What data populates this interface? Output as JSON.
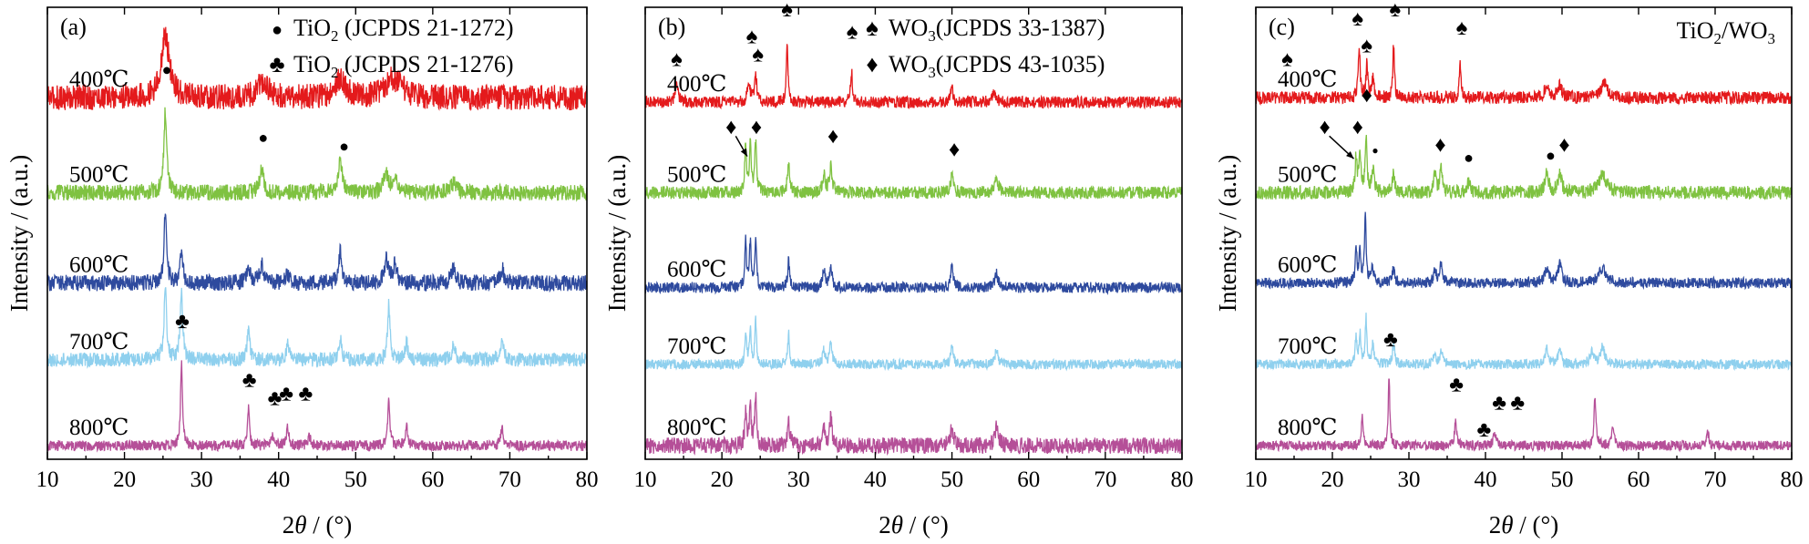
{
  "chart_data": [
    {
      "type": "line",
      "panel_label": "(a)",
      "xlabel": "2θ / (°)",
      "ylabel": "Intensity / (a.u.)",
      "xlim": [
        10,
        80
      ],
      "xticks": [
        10,
        20,
        30,
        40,
        50,
        60,
        70,
        80
      ],
      "legend": [
        {
          "symbol": "●",
          "text": "TiO₂ (JCPDS 21-1272)"
        },
        {
          "symbol": "♣",
          "text": "TiO₂ (JCPDS 21-1276)"
        }
      ],
      "corner_text": "",
      "series": [
        {
          "label": "400℃",
          "color": "#e41a1c",
          "base": 0.8,
          "noise": 0.028,
          "peaks": [
            [
              25.3,
              0.14,
              0.6
            ],
            [
              38.0,
              0.035,
              0.8
            ],
            [
              48.0,
              0.04,
              0.8
            ],
            [
              54.5,
              0.03,
              1.0
            ],
            [
              55.5,
              0.02,
              1.0
            ]
          ],
          "markers": [],
          "arrows": []
        },
        {
          "label": "500℃",
          "color": "#7fc241",
          "base": 0.59,
          "noise": 0.018,
          "peaks": [
            [
              25.3,
              0.18,
              0.22
            ],
            [
              37.8,
              0.05,
              0.3
            ],
            [
              48.0,
              0.07,
              0.3
            ],
            [
              53.9,
              0.04,
              0.35
            ],
            [
              55.1,
              0.04,
              0.35
            ],
            [
              62.7,
              0.02,
              0.4
            ]
          ],
          "markers": [
            {
              "x": 25.5,
              "y": 0.85,
              "symbol": "●"
            },
            {
              "x": 38.0,
              "y": 0.7,
              "symbol": "●"
            },
            {
              "x": 48.5,
              "y": 0.68,
              "symbol": "●"
            }
          ],
          "arrows": []
        },
        {
          "label": "600℃",
          "color": "#2e4a9e",
          "base": 0.39,
          "noise": 0.018,
          "peaks": [
            [
              25.3,
              0.16,
              0.2
            ],
            [
              27.4,
              0.07,
              0.2
            ],
            [
              36.1,
              0.03,
              0.3
            ],
            [
              37.8,
              0.04,
              0.3
            ],
            [
              41.2,
              0.02,
              0.3
            ],
            [
              48.0,
              0.07,
              0.25
            ],
            [
              54.0,
              0.05,
              0.3
            ],
            [
              55.1,
              0.04,
              0.3
            ],
            [
              62.7,
              0.03,
              0.3
            ],
            [
              69.0,
              0.03,
              0.3
            ]
          ],
          "markers": [],
          "arrows": []
        },
        {
          "label": "700℃",
          "color": "#8fd0ee",
          "base": 0.22,
          "noise": 0.016,
          "peaks": [
            [
              25.3,
              0.16,
              0.2
            ],
            [
              27.4,
              0.15,
              0.2
            ],
            [
              36.1,
              0.07,
              0.2
            ],
            [
              41.2,
              0.04,
              0.2
            ],
            [
              48.0,
              0.05,
              0.2
            ],
            [
              54.3,
              0.12,
              0.2
            ],
            [
              56.6,
              0.04,
              0.2
            ],
            [
              62.7,
              0.03,
              0.3
            ],
            [
              69.0,
              0.04,
              0.3
            ]
          ],
          "markers": [],
          "arrows": []
        },
        {
          "label": "800℃",
          "color": "#b54f98",
          "base": 0.03,
          "noise": 0.012,
          "peaks": [
            [
              27.4,
              0.18,
              0.15
            ],
            [
              36.1,
              0.08,
              0.15
            ],
            [
              39.2,
              0.02,
              0.2
            ],
            [
              41.2,
              0.04,
              0.2
            ],
            [
              44.0,
              0.02,
              0.2
            ],
            [
              54.3,
              0.11,
              0.15
            ],
            [
              56.6,
              0.04,
              0.2
            ],
            [
              69.0,
              0.04,
              0.2
            ]
          ],
          "markers": [
            {
              "x": 27.5,
              "y": 0.29,
              "symbol": "♣"
            },
            {
              "x": 36.2,
              "y": 0.16,
              "symbol": "♣"
            },
            {
              "x": 39.5,
              "y": 0.12,
              "symbol": "♣"
            },
            {
              "x": 41.0,
              "y": 0.13,
              "symbol": "♣"
            },
            {
              "x": 43.5,
              "y": 0.13,
              "symbol": "♣"
            }
          ],
          "arrows": []
        }
      ]
    },
    {
      "type": "line",
      "panel_label": "(b)",
      "xlabel": "2θ / (°)",
      "ylabel": "Intensity / (a.u.)",
      "xlim": [
        10,
        80
      ],
      "xticks": [
        10,
        20,
        30,
        40,
        50,
        60,
        70,
        80
      ],
      "legend": [
        {
          "symbol": "♠",
          "text": "WO₃(JCPDS 33-1387)"
        },
        {
          "symbol": "♦",
          "text": "WO₃(JCPDS 43-1035)"
        }
      ],
      "corner_text": "",
      "series": [
        {
          "label": "400℃",
          "color": "#e41a1c",
          "base": 0.79,
          "noise": 0.013,
          "peaks": [
            [
              14.1,
              0.05,
              0.2
            ],
            [
              23.5,
              0.05,
              0.18
            ],
            [
              24.4,
              0.06,
              0.18
            ],
            [
              28.5,
              0.14,
              0.12
            ],
            [
              36.9,
              0.07,
              0.15
            ],
            [
              50.0,
              0.03,
              0.2
            ],
            [
              55.5,
              0.02,
              0.3
            ]
          ],
          "markers": [
            {
              "x": 14.1,
              "y": 0.87,
              "symbol": "♠"
            },
            {
              "x": 23.9,
              "y": 0.92,
              "symbol": "♠"
            },
            {
              "x": 24.7,
              "y": 0.88,
              "symbol": "♠"
            },
            {
              "x": 28.5,
              "y": 0.98,
              "symbol": "♠"
            },
            {
              "x": 37.0,
              "y": 0.93,
              "symbol": "♠"
            }
          ],
          "arrows": []
        },
        {
          "label": "500℃",
          "color": "#7fc241",
          "base": 0.59,
          "noise": 0.014,
          "peaks": [
            [
              23.1,
              0.1,
              0.14
            ],
            [
              23.7,
              0.1,
              0.14
            ],
            [
              24.4,
              0.11,
              0.14
            ],
            [
              28.7,
              0.06,
              0.18
            ],
            [
              33.3,
              0.04,
              0.2
            ],
            [
              34.2,
              0.06,
              0.2
            ],
            [
              50.0,
              0.04,
              0.2
            ],
            [
              55.8,
              0.03,
              0.3
            ]
          ],
          "markers": [
            {
              "x": 21.2,
              "y": 0.72,
              "symbol": "♦"
            },
            {
              "x": 24.5,
              "y": 0.72,
              "symbol": "♦"
            },
            {
              "x": 34.5,
              "y": 0.7,
              "symbol": "♦"
            },
            {
              "x": 50.3,
              "y": 0.67,
              "symbol": "♦"
            }
          ],
          "arrows": [
            {
              "from": [
                21.8,
                0.715
              ],
              "to": [
                23.3,
                0.67
              ]
            }
          ]
        },
        {
          "label": "600℃",
          "color": "#2e4a9e",
          "base": 0.38,
          "noise": 0.012,
          "peaks": [
            [
              23.1,
              0.1,
              0.13
            ],
            [
              23.7,
              0.1,
              0.13
            ],
            [
              24.4,
              0.11,
              0.13
            ],
            [
              28.7,
              0.06,
              0.15
            ],
            [
              33.3,
              0.04,
              0.18
            ],
            [
              34.2,
              0.05,
              0.18
            ],
            [
              50.0,
              0.05,
              0.18
            ],
            [
              55.8,
              0.03,
              0.25
            ]
          ],
          "markers": [],
          "arrows": []
        },
        {
          "label": "700℃",
          "color": "#8fd0ee",
          "base": 0.21,
          "noise": 0.011,
          "peaks": [
            [
              23.1,
              0.07,
              0.13
            ],
            [
              23.7,
              0.08,
              0.13
            ],
            [
              24.4,
              0.1,
              0.13
            ],
            [
              28.7,
              0.07,
              0.13
            ],
            [
              33.3,
              0.03,
              0.18
            ],
            [
              34.2,
              0.05,
              0.18
            ],
            [
              50.0,
              0.04,
              0.18
            ],
            [
              55.8,
              0.03,
              0.25
            ]
          ],
          "markers": [],
          "arrows": []
        },
        {
          "label": "800℃",
          "color": "#b54f98",
          "base": 0.03,
          "noise": 0.018,
          "peaks": [
            [
              23.1,
              0.08,
              0.13
            ],
            [
              23.7,
              0.1,
              0.13
            ],
            [
              24.4,
              0.12,
              0.13
            ],
            [
              28.7,
              0.05,
              0.2
            ],
            [
              33.3,
              0.04,
              0.18
            ],
            [
              34.2,
              0.06,
              0.18
            ],
            [
              50.0,
              0.04,
              0.25
            ],
            [
              55.8,
              0.04,
              0.3
            ]
          ],
          "markers": [],
          "arrows": []
        }
      ]
    },
    {
      "type": "line",
      "panel_label": "(c)",
      "xlabel": "2θ / (°)",
      "ylabel": "Intensity / (a.u.)",
      "xlim": [
        10,
        80
      ],
      "xticks": [
        10,
        20,
        30,
        40,
        50,
        60,
        70,
        80
      ],
      "legend": [],
      "corner_text": "TiO₂/WO₃",
      "series": [
        {
          "label": "400℃",
          "color": "#e41a1c",
          "base": 0.8,
          "noise": 0.014,
          "peaks": [
            [
              23.5,
              0.11,
              0.14
            ],
            [
              24.5,
              0.07,
              0.14
            ],
            [
              25.3,
              0.04,
              0.2
            ],
            [
              28.0,
              0.12,
              0.12
            ],
            [
              36.7,
              0.08,
              0.13
            ],
            [
              48.0,
              0.03,
              0.3
            ],
            [
              49.7,
              0.03,
              0.3
            ],
            [
              55.5,
              0.03,
              0.5
            ]
          ],
          "markers": [
            {
              "x": 14.1,
              "y": 0.87,
              "symbol": "♠"
            },
            {
              "x": 23.3,
              "y": 0.96,
              "symbol": "♠"
            },
            {
              "x": 24.5,
              "y": 0.9,
              "symbol": "♠"
            },
            {
              "x": 28.2,
              "y": 0.98,
              "symbol": "♠"
            },
            {
              "x": 36.9,
              "y": 0.94,
              "symbol": "♠"
            }
          ],
          "arrows": []
        },
        {
          "label": "500℃",
          "color": "#7fc241",
          "base": 0.59,
          "noise": 0.015,
          "peaks": [
            [
              23.1,
              0.08,
              0.14
            ],
            [
              23.6,
              0.09,
              0.14
            ],
            [
              24.4,
              0.12,
              0.14
            ],
            [
              25.3,
              0.05,
              0.2
            ],
            [
              28.0,
              0.04,
              0.2
            ],
            [
              33.4,
              0.04,
              0.2
            ],
            [
              34.2,
              0.05,
              0.2
            ],
            [
              37.8,
              0.02,
              0.3
            ],
            [
              48.0,
              0.04,
              0.3
            ],
            [
              49.7,
              0.04,
              0.3
            ],
            [
              55.3,
              0.04,
              0.6
            ]
          ],
          "markers": [
            {
              "x": 19.0,
              "y": 0.72,
              "symbol": "♦"
            },
            {
              "x": 23.3,
              "y": 0.72,
              "symbol": "♦"
            },
            {
              "x": 24.5,
              "y": 0.79,
              "symbol": "♦"
            },
            {
              "x": 25.6,
              "y": 0.675,
              "symbol": "●small"
            },
            {
              "x": 34.1,
              "y": 0.68,
              "symbol": "♦"
            },
            {
              "x": 37.8,
              "y": 0.655,
              "symbol": "●"
            },
            {
              "x": 48.5,
              "y": 0.66,
              "symbol": "●"
            },
            {
              "x": 50.3,
              "y": 0.68,
              "symbol": "♦"
            }
          ],
          "arrows": [
            {
              "from": [
                19.6,
                0.715
              ],
              "to": [
                22.8,
                0.665
              ]
            }
          ]
        },
        {
          "label": "600℃",
          "color": "#2e4a9e",
          "base": 0.39,
          "noise": 0.012,
          "peaks": [
            [
              23.1,
              0.08,
              0.13
            ],
            [
              23.6,
              0.07,
              0.13
            ],
            [
              24.3,
              0.15,
              0.12
            ],
            [
              25.2,
              0.04,
              0.2
            ],
            [
              28.0,
              0.03,
              0.2
            ],
            [
              33.4,
              0.03,
              0.2
            ],
            [
              34.2,
              0.04,
              0.2
            ],
            [
              48.0,
              0.03,
              0.3
            ],
            [
              49.7,
              0.04,
              0.3
            ],
            [
              55.3,
              0.03,
              0.6
            ]
          ],
          "markers": [],
          "arrows": []
        },
        {
          "label": "700℃",
          "color": "#8fd0ee",
          "base": 0.21,
          "noise": 0.011,
          "peaks": [
            [
              23.1,
              0.06,
              0.13
            ],
            [
              23.6,
              0.07,
              0.13
            ],
            [
              24.4,
              0.1,
              0.13
            ],
            [
              25.3,
              0.05,
              0.15
            ],
            [
              28.0,
              0.04,
              0.2
            ],
            [
              33.4,
              0.02,
              0.2
            ],
            [
              34.2,
              0.03,
              0.2
            ],
            [
              48.0,
              0.04,
              0.2
            ],
            [
              49.7,
              0.04,
              0.2
            ],
            [
              53.9,
              0.03,
              0.3
            ],
            [
              55.3,
              0.04,
              0.3
            ]
          ],
          "markers": [],
          "arrows": []
        },
        {
          "label": "800℃",
          "color": "#b54f98",
          "base": 0.03,
          "noise": 0.011,
          "peaks": [
            [
              23.9,
              0.06,
              0.15
            ],
            [
              27.4,
              0.15,
              0.13
            ],
            [
              36.1,
              0.06,
              0.15
            ],
            [
              41.2,
              0.03,
              0.2
            ],
            [
              54.3,
              0.11,
              0.15
            ],
            [
              56.6,
              0.04,
              0.2
            ],
            [
              69.0,
              0.03,
              0.2
            ]
          ],
          "markers": [
            {
              "x": 27.6,
              "y": 0.25,
              "symbol": "♣"
            },
            {
              "x": 36.2,
              "y": 0.15,
              "symbol": "♣"
            },
            {
              "x": 39.8,
              "y": 0.05,
              "symbol": "♣"
            },
            {
              "x": 41.8,
              "y": 0.11,
              "symbol": "♣"
            },
            {
              "x": 44.2,
              "y": 0.11,
              "symbol": "♣"
            }
          ],
          "arrows": []
        }
      ]
    }
  ]
}
